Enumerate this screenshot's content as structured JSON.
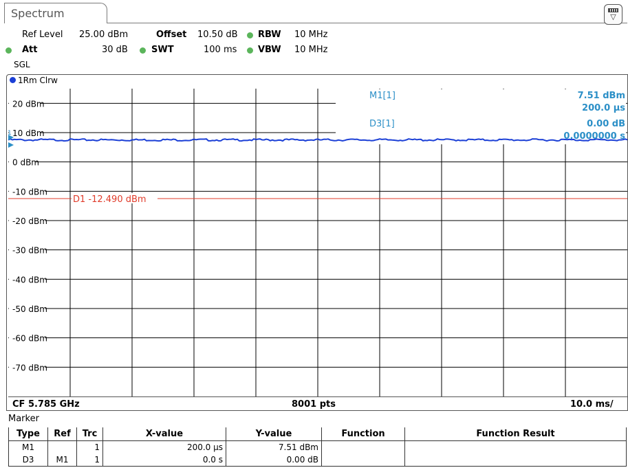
{
  "tab": {
    "label": "Spectrum"
  },
  "header": {
    "ref_level_label": "Ref Level",
    "ref_level_value": "25.00 dBm",
    "offset_label": "Offset",
    "offset_value": "10.50 dB",
    "rbw_label": "RBW",
    "rbw_value": "10 MHz",
    "att_label": "Att",
    "att_value": "30 dB",
    "swt_label": "SWT",
    "swt_value": "100 ms",
    "vbw_label": "VBW",
    "vbw_value": "10 MHz",
    "sweep_mode": "SGL",
    "status_dot_color": "#5bb55b"
  },
  "trace": {
    "label": "1Rm Clrw",
    "color": "#1b3fd6"
  },
  "markers_readout": {
    "m1_name": "M1[1]",
    "m1_level": "7.51 dBm",
    "m1_time": "200.0 µs",
    "d3_name": "D3[1]",
    "d3_level": "0.00 dB",
    "d3_time": "0.0000000 s",
    "color": "#2b8fc7"
  },
  "display_line": {
    "label": "D1 -12.490 dBm",
    "color": "#e03b2a"
  },
  "footer": {
    "center_freq": "CF 5.785 GHz",
    "points": "8001 pts",
    "time_div": "10.0 ms/"
  },
  "chart_data": {
    "type": "line",
    "ylabel": "",
    "xlabel": "",
    "y_ticks": [
      "20 dBm",
      "10 dBm",
      "0 dBm",
      "-10 dBm",
      "-20 dBm",
      "-30 dBm",
      "-40 dBm",
      "-50 dBm",
      "-60 dBm",
      "-70 dBm"
    ],
    "ylim": [
      -80,
      25
    ],
    "xlim_ms": [
      0,
      100
    ],
    "grid": true,
    "series": [
      {
        "name": "1Rm Clrw",
        "x_ms": [
          0,
          100
        ],
        "y": [
          7.51,
          7.51
        ]
      }
    ],
    "display_line_dbm": -12.49
  },
  "marker_table": {
    "title": "Marker",
    "columns": [
      "Type",
      "Ref",
      "Trc",
      "X-value",
      "Y-value",
      "Function",
      "Function Result"
    ],
    "rows": [
      [
        "M1",
        "",
        "1",
        "200.0 µs",
        "7.51 dBm",
        "",
        ""
      ],
      [
        "D3",
        "M1",
        "1",
        "0.0 s",
        "0.00 dB",
        "",
        ""
      ]
    ]
  }
}
